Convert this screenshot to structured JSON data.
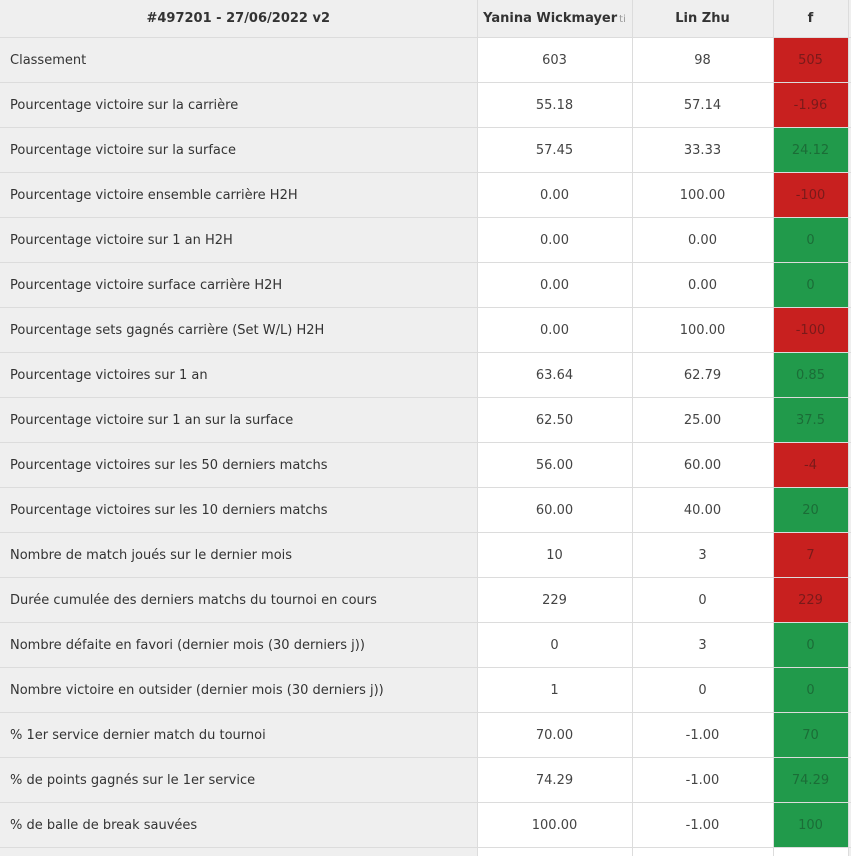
{
  "header": {
    "match_title": "#497201 - 27/06/2022 v2",
    "player1": "Yanina Wickmayer",
    "player1_suffix": "ti",
    "player2": "Lin Zhu",
    "diff_label": "f"
  },
  "colors": {
    "negative": "#c8201f",
    "positive": "#219a4b",
    "label_bg": "#efefef"
  },
  "rows": [
    {
      "label": "Classement",
      "p1": "603",
      "p2": "98",
      "diff": "505",
      "status": "red"
    },
    {
      "label": "Pourcentage victoire sur la carrière",
      "p1": "55.18",
      "p2": "57.14",
      "diff": "-1.96",
      "status": "red"
    },
    {
      "label": "Pourcentage victoire sur la surface",
      "p1": "57.45",
      "p2": "33.33",
      "diff": "24.12",
      "status": "green"
    },
    {
      "label": "Pourcentage victoire ensemble carrière H2H",
      "p1": "0.00",
      "p2": "100.00",
      "diff": "-100",
      "status": "red"
    },
    {
      "label": "Pourcentage victoire sur 1 an H2H",
      "p1": "0.00",
      "p2": "0.00",
      "diff": "0",
      "status": "green"
    },
    {
      "label": "Pourcentage victoire surface carrière H2H",
      "p1": "0.00",
      "p2": "0.00",
      "diff": "0",
      "status": "green"
    },
    {
      "label": "Pourcentage sets gagnés carrière (Set W/L) H2H",
      "p1": "0.00",
      "p2": "100.00",
      "diff": "-100",
      "status": "red"
    },
    {
      "label": "Pourcentage victoires sur 1 an",
      "p1": "63.64",
      "p2": "62.79",
      "diff": "0.85",
      "status": "green"
    },
    {
      "label": "Pourcentage victoire sur 1 an sur la surface",
      "p1": "62.50",
      "p2": "25.00",
      "diff": "37.5",
      "status": "green"
    },
    {
      "label": "Pourcentage victoires sur les 50 derniers matchs",
      "p1": "56.00",
      "p2": "60.00",
      "diff": "-4",
      "status": "red"
    },
    {
      "label": "Pourcentage victoires sur les 10 derniers matchs",
      "p1": "60.00",
      "p2": "40.00",
      "diff": "20",
      "status": "green"
    },
    {
      "label": "Nombre de match joués sur le dernier mois",
      "p1": "10",
      "p2": "3",
      "diff": "7",
      "status": "red"
    },
    {
      "label": "Durée cumulée des derniers matchs du tournoi en cours",
      "p1": "229",
      "p2": "0",
      "diff": "229",
      "status": "red"
    },
    {
      "label": "Nombre défaite en favori (dernier mois (30 derniers j))",
      "p1": "0",
      "p2": "3",
      "diff": "0",
      "status": "green"
    },
    {
      "label": "Nombre victoire en outsider (dernier mois (30 derniers j))",
      "p1": "1",
      "p2": "0",
      "diff": "0",
      "status": "green"
    },
    {
      "label": "% 1er service dernier match du tournoi",
      "p1": "70.00",
      "p2": "-1.00",
      "diff": "70",
      "status": "green"
    },
    {
      "label": "% de points gagnés sur le 1er service",
      "p1": "74.29",
      "p2": "-1.00",
      "diff": "74.29",
      "status": "green"
    },
    {
      "label": "% de balle de break sauvées",
      "p1": "100.00",
      "p2": "-1.00",
      "diff": "100",
      "status": "green"
    }
  ]
}
